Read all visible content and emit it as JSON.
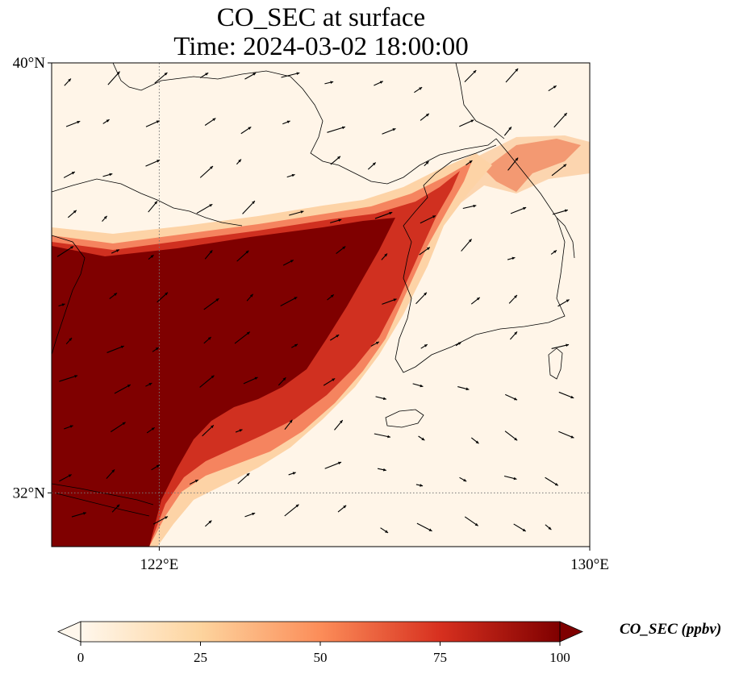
{
  "title": "CO_SEC at surface",
  "subtitle": "Time: 2024-03-02 18:00:00",
  "map": {
    "lon_range": [
      120,
      130
    ],
    "lat_range": [
      31,
      40
    ],
    "lat_ticks": [
      {
        "value": 40,
        "label": "40°N"
      },
      {
        "value": 32,
        "label": "32°N"
      }
    ],
    "lon_ticks": [
      {
        "value": 122,
        "label": "122°E"
      },
      {
        "value": 130,
        "label": "130°E"
      }
    ],
    "gridlines": {
      "lon": [
        122
      ],
      "lat": [
        32
      ],
      "style": "dotted"
    },
    "coastlines": true,
    "wind_vectors": true
  },
  "colorbar": {
    "label": "CO_SEC (ppbv)",
    "min": 0,
    "max": 100,
    "ticks": [
      "0",
      "25",
      "50",
      "75",
      "100"
    ],
    "extend": "both",
    "colormap": "OrRd",
    "colors": [
      "#fff7ec",
      "#fdd49e",
      "#fc8d59",
      "#d7301f",
      "#7f0000"
    ]
  }
}
